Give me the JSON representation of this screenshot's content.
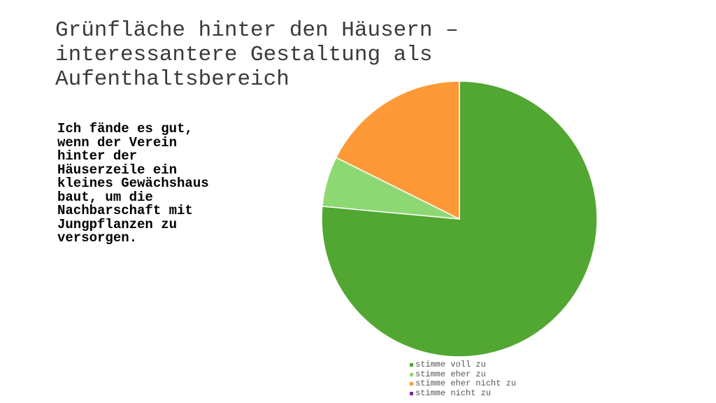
{
  "slide": {
    "title": "Grünfläche hinter den Häusern –\ninteressantere Gestaltung als\nAufenthaltsbereich",
    "statement": "Ich fände es gut,\nwenn der Verein\nhinter der\nHäuserzeile ein\nkleines Gewächshaus\nbaut, um die\nNachbarschaft mit\nJungpflanzen zu\nversorgen."
  },
  "chart_data": {
    "type": "pie",
    "start": "top",
    "direction": "clockwise",
    "legend_position": "bottom",
    "slices": [
      {
        "label": "stimme voll zu",
        "value": 13,
        "color": "#51a732"
      },
      {
        "label": "stimme eher zu",
        "value": 1,
        "color": "#8ed873"
      },
      {
        "label": "stimme eher nicht zu",
        "value": 3,
        "color": "#fd9a37"
      },
      {
        "label": "stimme nicht zu",
        "value": 0,
        "color": "#7b2c8c"
      }
    ]
  }
}
